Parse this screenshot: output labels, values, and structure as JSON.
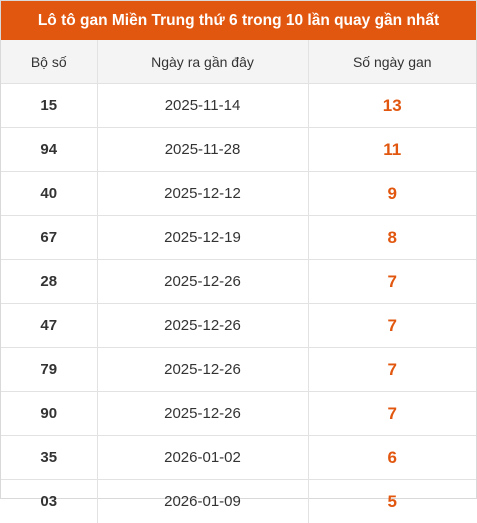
{
  "title": "Lô tô gan Miền Trung thứ 6 trong 10 lần quay gần nhất",
  "colors": {
    "accent": "#e2570f",
    "header_bg": "#f4f4f4",
    "border": "#e2e2e2"
  },
  "table": {
    "headers": [
      "Bộ số",
      "Ngày ra gần đây",
      "Số ngày gan"
    ],
    "rows": [
      {
        "number": "15",
        "last_date": "2025-11-14",
        "gan_days": "13"
      },
      {
        "number": "94",
        "last_date": "2025-11-28",
        "gan_days": "11"
      },
      {
        "number": "40",
        "last_date": "2025-12-12",
        "gan_days": "9"
      },
      {
        "number": "67",
        "last_date": "2025-12-19",
        "gan_days": "8"
      },
      {
        "number": "28",
        "last_date": "2025-12-26",
        "gan_days": "7"
      },
      {
        "number": "47",
        "last_date": "2025-12-26",
        "gan_days": "7"
      },
      {
        "number": "79",
        "last_date": "2025-12-26",
        "gan_days": "7"
      },
      {
        "number": "90",
        "last_date": "2025-12-26",
        "gan_days": "7"
      },
      {
        "number": "35",
        "last_date": "2026-01-02",
        "gan_days": "6"
      },
      {
        "number": "03",
        "last_date": "2026-01-09",
        "gan_days": "5"
      }
    ]
  }
}
